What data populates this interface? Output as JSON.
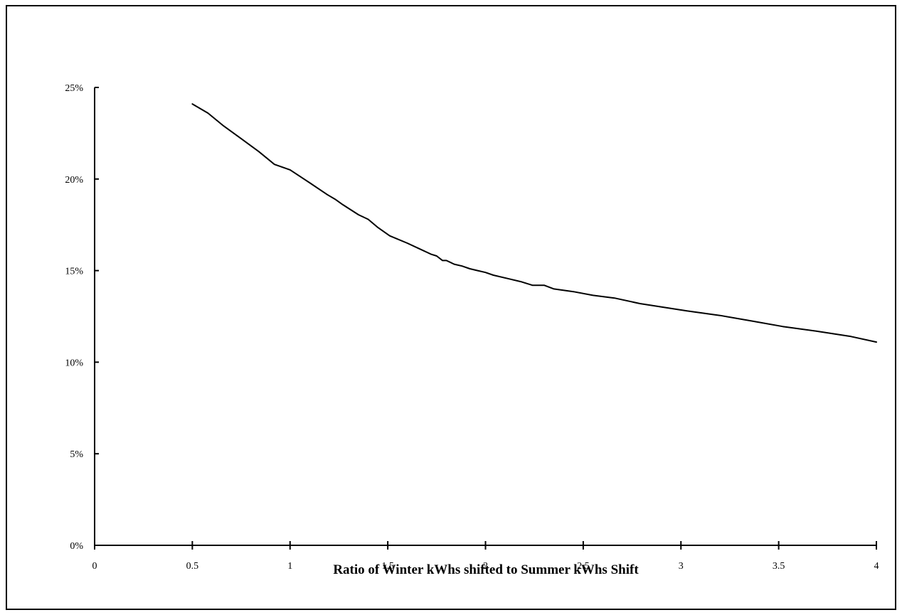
{
  "chart_data": {
    "type": "line",
    "title": "",
    "xlabel": "Ratio of Winter kWhs shifted to Summer kWhs Shift",
    "ylabel": "",
    "xlim": [
      0,
      4
    ],
    "ylim": [
      0,
      25
    ],
    "x_ticks": [
      0,
      0.5,
      1,
      1.5,
      2,
      2.5,
      3,
      3.5,
      4
    ],
    "x_tick_labels": [
      "0",
      "0.5",
      "1",
      "1.5",
      "2",
      "2.5",
      "3",
      "3.5",
      "4"
    ],
    "y_ticks": [
      0,
      5,
      10,
      15,
      20,
      25
    ],
    "y_tick_labels": [
      "0%",
      "5%",
      "10%",
      "15%",
      "20%",
      "25%"
    ],
    "y_unit": "percent",
    "grid": false,
    "legend": "none",
    "line_color": "#000000",
    "series": [
      {
        "x": [
          0.5,
          0.58,
          0.66,
          0.75,
          0.84,
          0.92,
          1.0,
          1.1,
          1.19,
          1.23,
          1.27,
          1.35,
          1.4,
          1.45,
          1.51,
          1.6,
          1.66,
          1.72,
          1.75,
          1.78,
          1.8,
          1.84,
          1.88,
          1.92,
          1.96,
          2.0,
          2.04,
          2.12,
          2.18,
          2.24,
          2.28,
          2.3,
          2.35,
          2.45,
          2.55,
          2.66,
          2.79,
          2.91,
          3.03,
          3.2,
          3.36,
          3.52,
          3.69,
          3.87,
          4.0
        ],
        "y": [
          24.1,
          23.6,
          22.9,
          22.2,
          21.5,
          20.8,
          20.5,
          19.8,
          19.15,
          18.9,
          18.6,
          18.05,
          17.8,
          17.35,
          16.9,
          16.5,
          16.2,
          15.9,
          15.8,
          15.55,
          15.55,
          15.35,
          15.25,
          15.1,
          15.0,
          14.9,
          14.75,
          14.55,
          14.4,
          14.2,
          14.2,
          14.2,
          14.0,
          13.85,
          13.65,
          13.5,
          13.2,
          13.0,
          12.8,
          12.55,
          12.25,
          11.95,
          11.7,
          11.4,
          11.1
        ]
      }
    ]
  }
}
